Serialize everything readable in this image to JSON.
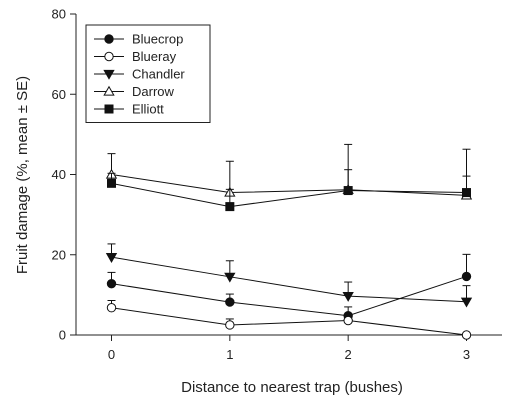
{
  "chart_data": {
    "type": "line",
    "xlabel": "Distance to nearest trap (bushes)",
    "ylabel": "Fruit damage (%, mean ± SE)",
    "x": [
      0,
      1,
      2,
      3
    ],
    "xlim": [
      -0.3,
      3.3
    ],
    "ylim": [
      0,
      80
    ],
    "xticks": [
      "0",
      "1",
      "2",
      "3"
    ],
    "yticks": [
      "0",
      "20",
      "40",
      "60",
      "80"
    ],
    "grid": false,
    "legend_position": "top-left",
    "series": [
      {
        "name": "Bluecrop",
        "marker": "circle-filled",
        "values": [
          12.8,
          8.2,
          4.8,
          14.6
        ],
        "errors": [
          2.8,
          2.0,
          2.2,
          5.5
        ]
      },
      {
        "name": "Blueray",
        "marker": "circle-open",
        "values": [
          6.8,
          2.5,
          3.6,
          0.0
        ],
        "errors": [
          1.8,
          1.5,
          1.6,
          0.0
        ]
      },
      {
        "name": "Chandler",
        "marker": "triangle-down-filled",
        "values": [
          19.4,
          14.5,
          9.7,
          8.3
        ],
        "errors": [
          3.3,
          4.0,
          3.5,
          4.0
        ]
      },
      {
        "name": "Darrow",
        "marker": "triangle-up-open",
        "values": [
          40.0,
          35.5,
          36.2,
          34.8
        ],
        "errors": [
          5.2,
          7.8,
          11.3,
          4.8
        ]
      },
      {
        "name": "Elliott",
        "marker": "square-filled",
        "values": [
          37.8,
          32.0,
          36.0,
          35.5
        ],
        "errors": [
          2.5,
          4.3,
          5.2,
          10.8
        ]
      }
    ]
  }
}
